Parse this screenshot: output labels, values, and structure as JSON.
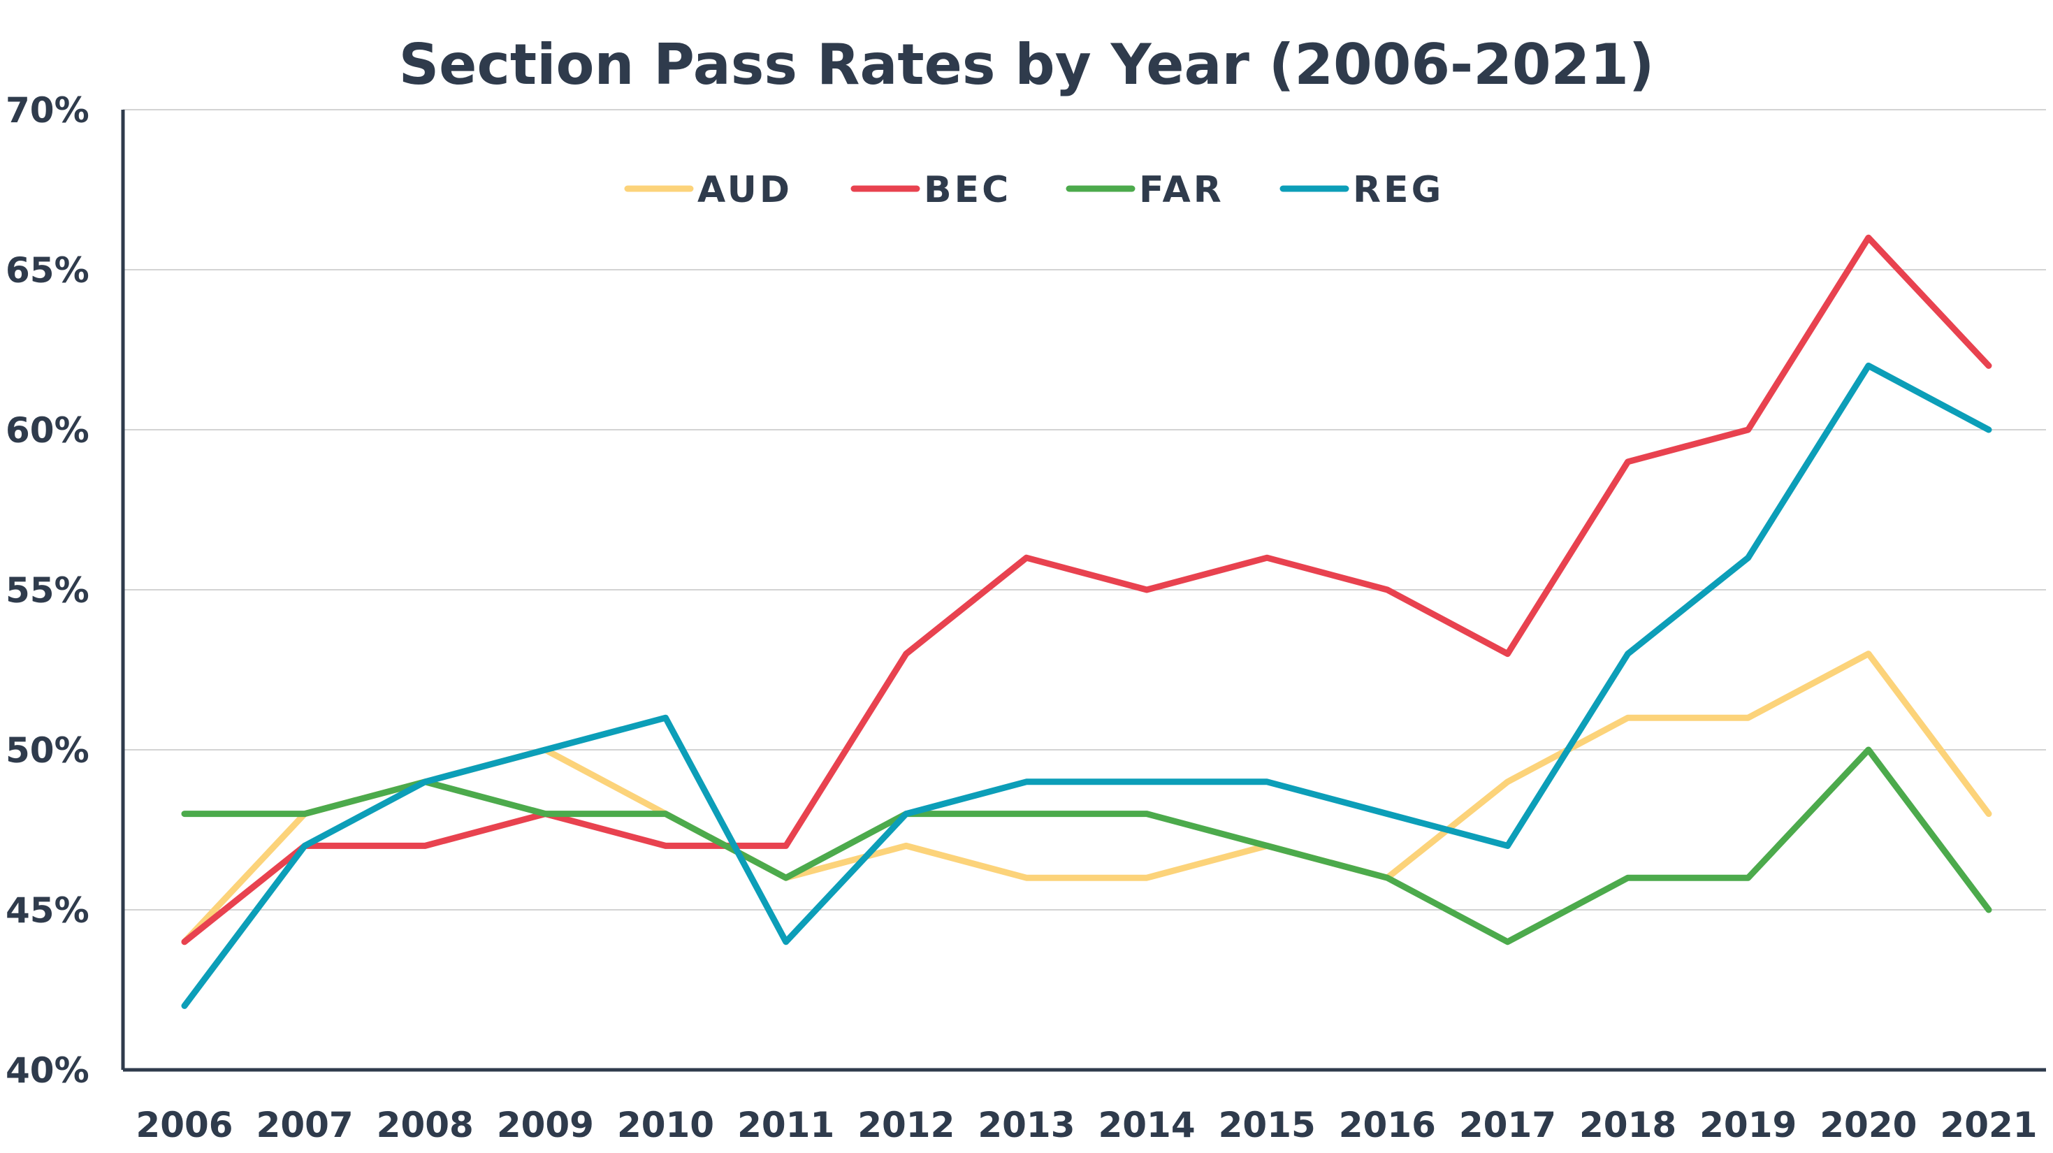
{
  "chart_data": {
    "type": "line",
    "title": "Section Pass Rates by Year (2006-2021)",
    "xlabel": "",
    "ylabel": "",
    "categories": [
      "2006",
      "2007",
      "2008",
      "2009",
      "2010",
      "2011",
      "2012",
      "2013",
      "2014",
      "2015",
      "2016",
      "2017",
      "2018",
      "2019",
      "2020",
      "2021"
    ],
    "ylim": [
      40,
      70
    ],
    "yticks": [
      40,
      45,
      50,
      55,
      60,
      65,
      70
    ],
    "ytick_labels": [
      "40%",
      "45%",
      "50%",
      "55%",
      "60%",
      "65%",
      "70%"
    ],
    "grid": true,
    "legend_position": "top-center",
    "series": [
      {
        "name": "AUD",
        "color": "#fcd37a",
        "values": [
          44,
          48,
          49,
          50,
          48,
          46,
          47,
          46,
          46,
          47,
          46,
          49,
          51,
          51,
          53,
          48
        ]
      },
      {
        "name": "BEC",
        "color": "#e8424f",
        "values": [
          44,
          47,
          47,
          48,
          47,
          47,
          53,
          56,
          55,
          56,
          55,
          53,
          59,
          60,
          66,
          62
        ]
      },
      {
        "name": "FAR",
        "color": "#4caa4c",
        "values": [
          48,
          48,
          49,
          48,
          48,
          46,
          48,
          48,
          48,
          47,
          46,
          44,
          46,
          46,
          50,
          45
        ]
      },
      {
        "name": "REG",
        "color": "#0c9eb8",
        "values": [
          42,
          47,
          49,
          50,
          51,
          44,
          48,
          49,
          49,
          49,
          48,
          47,
          53,
          56,
          62,
          60
        ]
      }
    ]
  }
}
